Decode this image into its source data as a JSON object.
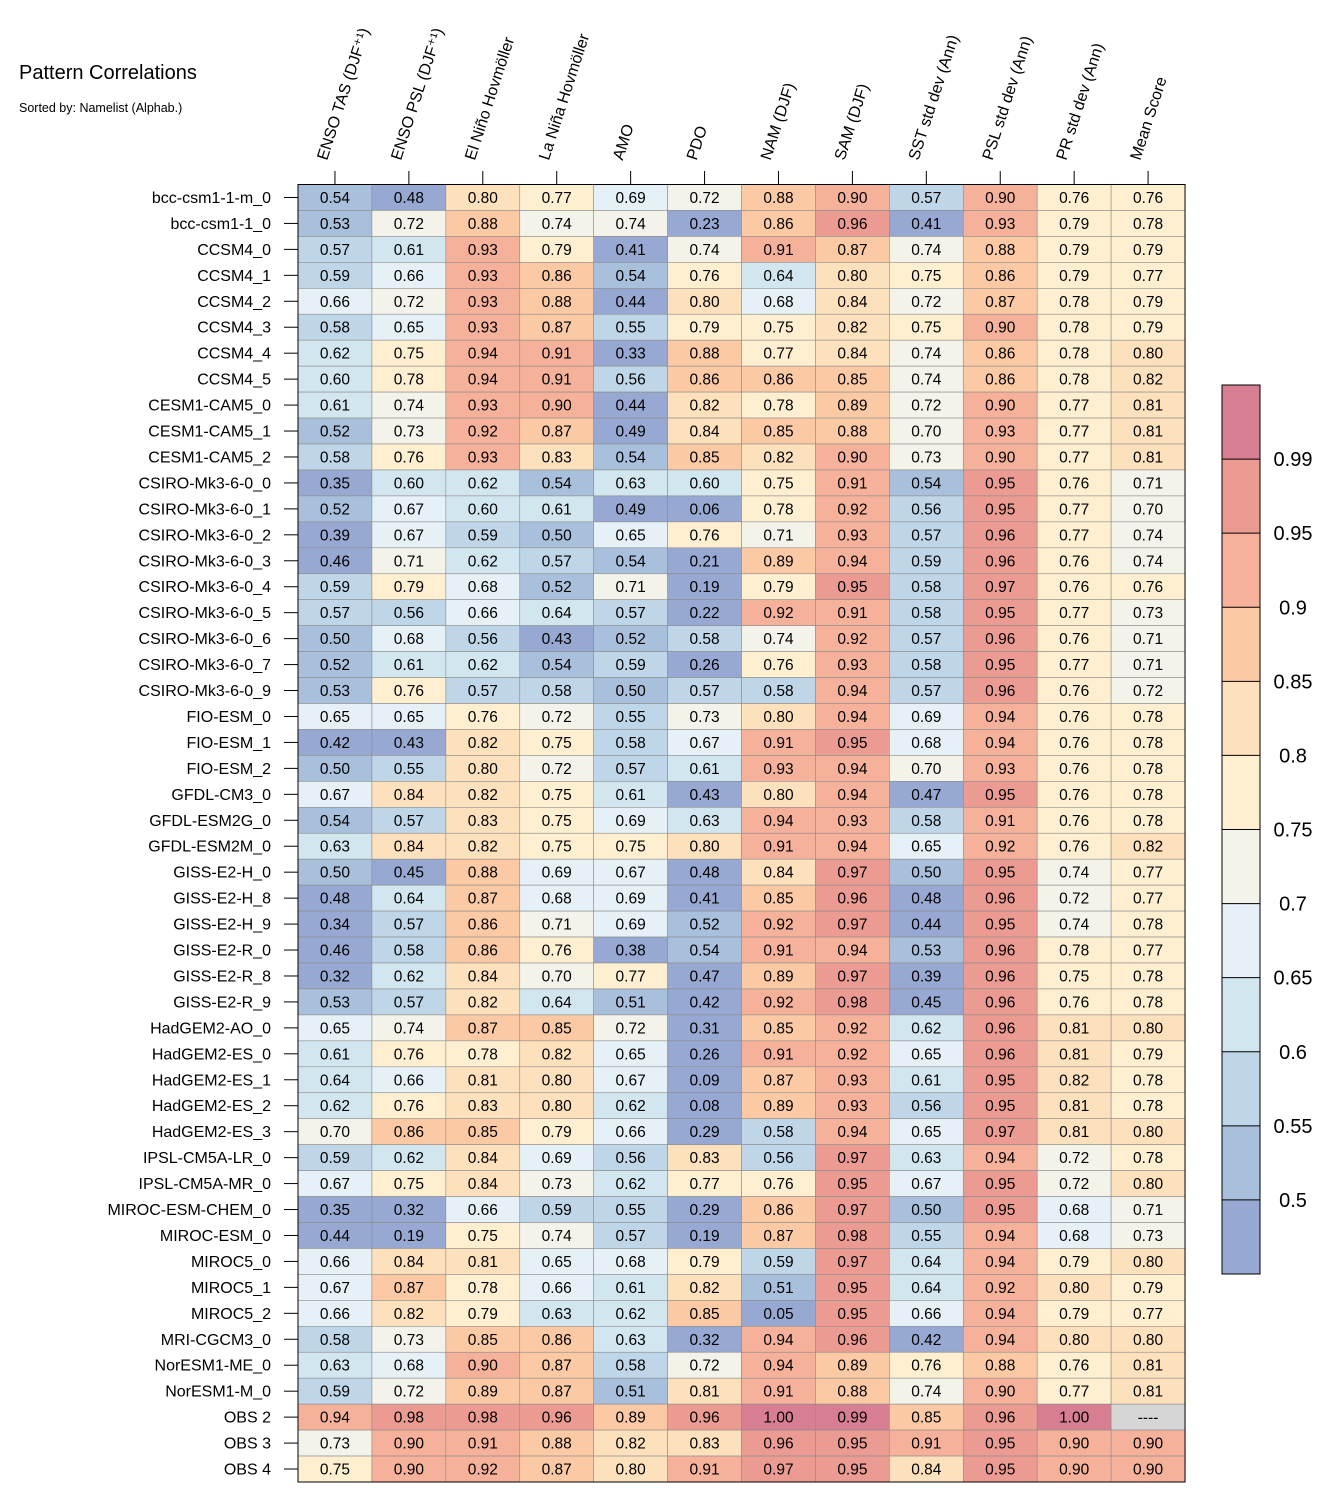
{
  "chart_data": {
    "type": "heatmap",
    "title": "Pattern Correlations",
    "subtitle": "Sorted by: Namelist (Alphab.)",
    "columns": [
      "ENSO TAS (DJF⁺¹)",
      "ENSO PSL (DJF⁺¹)",
      "El Niño Hovmöller",
      "La Niña Hovmöller",
      "AMO",
      "PDO",
      "NAM (DJF)",
      "SAM (DJF)",
      "SST std dev (Ann)",
      "PSL std dev (Ann)",
      "PR std dev (Ann)",
      "Mean Score"
    ],
    "rows": [
      "bcc-csm1-1-m_0",
      "bcc-csm1-1_0",
      "CCSM4_0",
      "CCSM4_1",
      "CCSM4_2",
      "CCSM4_3",
      "CCSM4_4",
      "CCSM4_5",
      "CESM1-CAM5_0",
      "CESM1-CAM5_1",
      "CESM1-CAM5_2",
      "CSIRO-Mk3-6-0_0",
      "CSIRO-Mk3-6-0_1",
      "CSIRO-Mk3-6-0_2",
      "CSIRO-Mk3-6-0_3",
      "CSIRO-Mk3-6-0_4",
      "CSIRO-Mk3-6-0_5",
      "CSIRO-Mk3-6-0_6",
      "CSIRO-Mk3-6-0_7",
      "CSIRO-Mk3-6-0_9",
      "FIO-ESM_0",
      "FIO-ESM_1",
      "FIO-ESM_2",
      "GFDL-CM3_0",
      "GFDL-ESM2G_0",
      "GFDL-ESM2M_0",
      "GISS-E2-H_0",
      "GISS-E2-H_8",
      "GISS-E2-H_9",
      "GISS-E2-R_0",
      "GISS-E2-R_8",
      "GISS-E2-R_9",
      "HadGEM2-AO_0",
      "HadGEM2-ES_0",
      "HadGEM2-ES_1",
      "HadGEM2-ES_2",
      "HadGEM2-ES_3",
      "IPSL-CM5A-LR_0",
      "IPSL-CM5A-MR_0",
      "MIROC-ESM-CHEM_0",
      "MIROC-ESM_0",
      "MIROC5_0",
      "MIROC5_1",
      "MIROC5_2",
      "MRI-CGCM3_0",
      "NorESM1-ME_0",
      "NorESM1-M_0",
      "OBS 2",
      "OBS 3",
      "OBS 4"
    ],
    "values": [
      [
        "0.54",
        "0.48",
        "0.80",
        "0.77",
        "0.69",
        "0.72",
        "0.88",
        "0.90",
        "0.57",
        "0.90",
        "0.76",
        "0.76"
      ],
      [
        "0.53",
        "0.72",
        "0.88",
        "0.74",
        "0.74",
        "0.23",
        "0.86",
        "0.96",
        "0.41",
        "0.93",
        "0.79",
        "0.78"
      ],
      [
        "0.57",
        "0.61",
        "0.93",
        "0.79",
        "0.41",
        "0.74",
        "0.91",
        "0.87",
        "0.74",
        "0.88",
        "0.79",
        "0.79"
      ],
      [
        "0.59",
        "0.66",
        "0.93",
        "0.86",
        "0.54",
        "0.76",
        "0.64",
        "0.80",
        "0.75",
        "0.86",
        "0.79",
        "0.77"
      ],
      [
        "0.66",
        "0.72",
        "0.93",
        "0.88",
        "0.44",
        "0.80",
        "0.68",
        "0.84",
        "0.72",
        "0.87",
        "0.78",
        "0.79"
      ],
      [
        "0.58",
        "0.65",
        "0.93",
        "0.87",
        "0.55",
        "0.79",
        "0.75",
        "0.82",
        "0.75",
        "0.90",
        "0.78",
        "0.79"
      ],
      [
        "0.62",
        "0.75",
        "0.94",
        "0.91",
        "0.33",
        "0.88",
        "0.77",
        "0.84",
        "0.74",
        "0.86",
        "0.78",
        "0.80"
      ],
      [
        "0.60",
        "0.78",
        "0.94",
        "0.91",
        "0.56",
        "0.86",
        "0.86",
        "0.85",
        "0.74",
        "0.86",
        "0.78",
        "0.82"
      ],
      [
        "0.61",
        "0.74",
        "0.93",
        "0.90",
        "0.44",
        "0.82",
        "0.78",
        "0.89",
        "0.72",
        "0.90",
        "0.77",
        "0.81"
      ],
      [
        "0.52",
        "0.73",
        "0.92",
        "0.87",
        "0.49",
        "0.84",
        "0.85",
        "0.88",
        "0.70",
        "0.93",
        "0.77",
        "0.81"
      ],
      [
        "0.58",
        "0.76",
        "0.93",
        "0.83",
        "0.54",
        "0.85",
        "0.82",
        "0.90",
        "0.73",
        "0.90",
        "0.77",
        "0.81"
      ],
      [
        "0.35",
        "0.60",
        "0.62",
        "0.54",
        "0.63",
        "0.60",
        "0.75",
        "0.91",
        "0.54",
        "0.95",
        "0.76",
        "0.71"
      ],
      [
        "0.52",
        "0.67",
        "0.60",
        "0.61",
        "0.49",
        "0.06",
        "0.78",
        "0.92",
        "0.56",
        "0.95",
        "0.77",
        "0.70"
      ],
      [
        "0.39",
        "0.67",
        "0.59",
        "0.50",
        "0.65",
        "0.76",
        "0.71",
        "0.93",
        "0.57",
        "0.96",
        "0.77",
        "0.74"
      ],
      [
        "0.46",
        "0.71",
        "0.62",
        "0.57",
        "0.54",
        "0.21",
        "0.89",
        "0.94",
        "0.59",
        "0.96",
        "0.76",
        "0.74"
      ],
      [
        "0.59",
        "0.79",
        "0.68",
        "0.52",
        "0.71",
        "0.19",
        "0.79",
        "0.95",
        "0.58",
        "0.97",
        "0.76",
        "0.76"
      ],
      [
        "0.57",
        "0.56",
        "0.66",
        "0.64",
        "0.57",
        "0.22",
        "0.92",
        "0.91",
        "0.58",
        "0.95",
        "0.77",
        "0.73"
      ],
      [
        "0.50",
        "0.68",
        "0.56",
        "0.43",
        "0.52",
        "0.58",
        "0.74",
        "0.92",
        "0.57",
        "0.96",
        "0.76",
        "0.71"
      ],
      [
        "0.52",
        "0.61",
        "0.62",
        "0.54",
        "0.59",
        "0.26",
        "0.76",
        "0.93",
        "0.58",
        "0.95",
        "0.77",
        "0.71"
      ],
      [
        "0.53",
        "0.76",
        "0.57",
        "0.58",
        "0.50",
        "0.57",
        "0.58",
        "0.94",
        "0.57",
        "0.96",
        "0.76",
        "0.72"
      ],
      [
        "0.65",
        "0.65",
        "0.76",
        "0.72",
        "0.55",
        "0.73",
        "0.80",
        "0.94",
        "0.69",
        "0.94",
        "0.76",
        "0.78"
      ],
      [
        "0.42",
        "0.43",
        "0.82",
        "0.75",
        "0.58",
        "0.67",
        "0.91",
        "0.95",
        "0.68",
        "0.94",
        "0.76",
        "0.78"
      ],
      [
        "0.50",
        "0.55",
        "0.80",
        "0.72",
        "0.57",
        "0.61",
        "0.93",
        "0.94",
        "0.70",
        "0.93",
        "0.76",
        "0.78"
      ],
      [
        "0.67",
        "0.84",
        "0.82",
        "0.75",
        "0.61",
        "0.43",
        "0.80",
        "0.94",
        "0.47",
        "0.95",
        "0.76",
        "0.78"
      ],
      [
        "0.54",
        "0.57",
        "0.83",
        "0.75",
        "0.69",
        "0.63",
        "0.94",
        "0.93",
        "0.58",
        "0.91",
        "0.76",
        "0.78"
      ],
      [
        "0.63",
        "0.84",
        "0.82",
        "0.75",
        "0.75",
        "0.80",
        "0.91",
        "0.94",
        "0.65",
        "0.92",
        "0.76",
        "0.82"
      ],
      [
        "0.50",
        "0.45",
        "0.88",
        "0.69",
        "0.67",
        "0.48",
        "0.84",
        "0.97",
        "0.50",
        "0.95",
        "0.74",
        "0.77"
      ],
      [
        "0.48",
        "0.64",
        "0.87",
        "0.68",
        "0.69",
        "0.41",
        "0.85",
        "0.96",
        "0.48",
        "0.96",
        "0.72",
        "0.77"
      ],
      [
        "0.34",
        "0.57",
        "0.86",
        "0.71",
        "0.69",
        "0.52",
        "0.92",
        "0.97",
        "0.44",
        "0.95",
        "0.74",
        "0.78"
      ],
      [
        "0.46",
        "0.58",
        "0.86",
        "0.76",
        "0.38",
        "0.54",
        "0.91",
        "0.94",
        "0.53",
        "0.96",
        "0.78",
        "0.77"
      ],
      [
        "0.32",
        "0.62",
        "0.84",
        "0.70",
        "0.77",
        "0.47",
        "0.89",
        "0.97",
        "0.39",
        "0.96",
        "0.75",
        "0.78"
      ],
      [
        "0.53",
        "0.57",
        "0.82",
        "0.64",
        "0.51",
        "0.42",
        "0.92",
        "0.98",
        "0.45",
        "0.96",
        "0.76",
        "0.78"
      ],
      [
        "0.65",
        "0.74",
        "0.87",
        "0.85",
        "0.72",
        "0.31",
        "0.85",
        "0.92",
        "0.62",
        "0.96",
        "0.81",
        "0.80"
      ],
      [
        "0.61",
        "0.76",
        "0.78",
        "0.82",
        "0.65",
        "0.26",
        "0.91",
        "0.92",
        "0.65",
        "0.96",
        "0.81",
        "0.79"
      ],
      [
        "0.64",
        "0.66",
        "0.81",
        "0.80",
        "0.67",
        "0.09",
        "0.87",
        "0.93",
        "0.61",
        "0.95",
        "0.82",
        "0.78"
      ],
      [
        "0.62",
        "0.76",
        "0.83",
        "0.80",
        "0.62",
        "0.08",
        "0.89",
        "0.93",
        "0.56",
        "0.95",
        "0.81",
        "0.78"
      ],
      [
        "0.70",
        "0.86",
        "0.85",
        "0.79",
        "0.66",
        "0.29",
        "0.58",
        "0.94",
        "0.65",
        "0.97",
        "0.81",
        "0.80"
      ],
      [
        "0.59",
        "0.62",
        "0.84",
        "0.69",
        "0.56",
        "0.83",
        "0.56",
        "0.97",
        "0.63",
        "0.94",
        "0.72",
        "0.78"
      ],
      [
        "0.67",
        "0.75",
        "0.84",
        "0.73",
        "0.62",
        "0.77",
        "0.76",
        "0.95",
        "0.67",
        "0.95",
        "0.72",
        "0.80"
      ],
      [
        "0.35",
        "0.32",
        "0.66",
        "0.59",
        "0.55",
        "0.29",
        "0.86",
        "0.97",
        "0.50",
        "0.95",
        "0.68",
        "0.71"
      ],
      [
        "0.44",
        "0.19",
        "0.75",
        "0.74",
        "0.57",
        "0.19",
        "0.87",
        "0.98",
        "0.55",
        "0.94",
        "0.68",
        "0.73"
      ],
      [
        "0.66",
        "0.84",
        "0.81",
        "0.65",
        "0.68",
        "0.79",
        "0.59",
        "0.97",
        "0.64",
        "0.94",
        "0.79",
        "0.80"
      ],
      [
        "0.67",
        "0.87",
        "0.78",
        "0.66",
        "0.61",
        "0.82",
        "0.51",
        "0.95",
        "0.64",
        "0.92",
        "0.80",
        "0.79"
      ],
      [
        "0.66",
        "0.82",
        "0.79",
        "0.63",
        "0.62",
        "0.85",
        "0.05",
        "0.95",
        "0.66",
        "0.94",
        "0.79",
        "0.77"
      ],
      [
        "0.58",
        "0.73",
        "0.85",
        "0.86",
        "0.63",
        "0.32",
        "0.94",
        "0.96",
        "0.42",
        "0.94",
        "0.80",
        "0.80"
      ],
      [
        "0.63",
        "0.68",
        "0.90",
        "0.87",
        "0.58",
        "0.72",
        "0.94",
        "0.89",
        "0.76",
        "0.88",
        "0.76",
        "0.81"
      ],
      [
        "0.59",
        "0.72",
        "0.89",
        "0.87",
        "0.51",
        "0.81",
        "0.91",
        "0.88",
        "0.74",
        "0.90",
        "0.77",
        "0.81"
      ],
      [
        "0.94",
        "0.98",
        "0.98",
        "0.96",
        "0.89",
        "0.96",
        "1.00",
        "0.99",
        "0.85",
        "0.96",
        "1.00",
        "----"
      ],
      [
        "0.73",
        "0.90",
        "0.91",
        "0.88",
        "0.82",
        "0.83",
        "0.96",
        "0.95",
        "0.91",
        "0.95",
        "0.90",
        "0.90"
      ],
      [
        "0.75",
        "0.90",
        "0.92",
        "0.87",
        "0.80",
        "0.91",
        "0.97",
        "0.95",
        "0.84",
        "0.95",
        "0.90",
        "0.90"
      ]
    ],
    "colorbar": {
      "ticks": [
        "0.5",
        "0.55",
        "0.6",
        "0.65",
        "0.7",
        "0.75",
        "0.8",
        "0.85",
        "0.9",
        "0.95",
        "0.99"
      ],
      "colors": [
        "#97a8d2",
        "#a9c0dd",
        "#bed6e8",
        "#d2e6f0",
        "#e5f1f6",
        "#f3f3ea",
        "#fdefcf",
        "#fde0bc",
        "#fbcaa5",
        "#f5b19a",
        "#ec9b92",
        "#d87e92"
      ],
      "missing_color": "#d6d6d6"
    }
  }
}
